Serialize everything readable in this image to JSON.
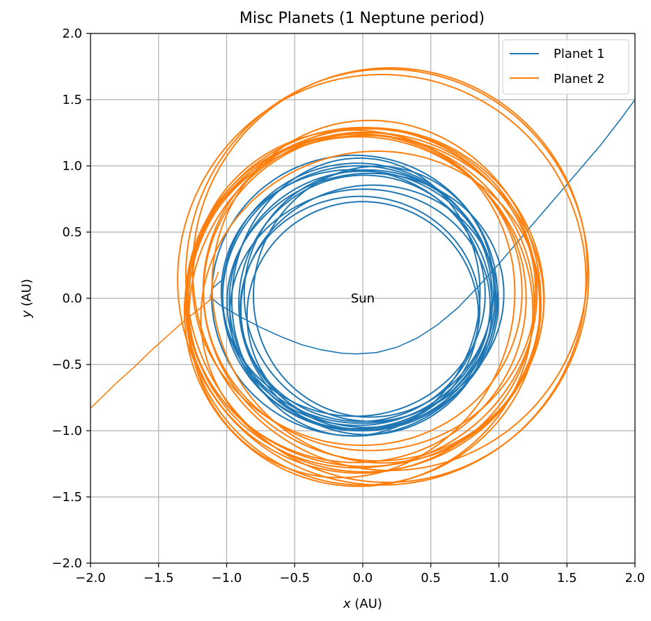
{
  "chart_data": {
    "type": "line",
    "title": "Misc Planets (1 Neptune period)",
    "xlabel_var": "x",
    "xlabel_unit": " (AU)",
    "ylabel_var": "y",
    "ylabel_unit": " (AU)",
    "xlim": [
      -2.0,
      2.0
    ],
    "ylim": [
      -2.0,
      2.0
    ],
    "xticks": [
      -2.0,
      -1.5,
      -1.0,
      -0.5,
      0.0,
      0.5,
      1.0,
      1.5,
      2.0
    ],
    "yticks": [
      -2.0,
      -1.5,
      -1.0,
      -0.5,
      0.0,
      0.5,
      1.0,
      1.5,
      2.0
    ],
    "xtick_labels": [
      "−2.0",
      "−1.5",
      "−1.0",
      "−0.5",
      "0.0",
      "0.5",
      "1.0",
      "1.5",
      "2.0"
    ],
    "ytick_labels": [
      "−2.0",
      "−1.5",
      "−1.0",
      "−0.5",
      "0.0",
      "0.5",
      "1.0",
      "1.5",
      "2.0"
    ],
    "grid": true,
    "legend_position": "top-right",
    "annotation": {
      "text": "Sun",
      "x": 0.0,
      "y": 0.0
    },
    "series": [
      {
        "name": "Planet 1",
        "color": "#1f77b4",
        "orbit_loops": [
          {
            "cx": -0.06,
            "cy": 0.02,
            "rx": 1.05,
            "ry": 1.06,
            "rot_deg": 0
          },
          {
            "cx": -0.03,
            "cy": 0.0,
            "rx": 1.0,
            "ry": 1.0,
            "rot_deg": 0
          },
          {
            "cx": 0.0,
            "cy": -0.02,
            "rx": 0.98,
            "ry": 0.98,
            "rot_deg": 0
          },
          {
            "cx": 0.05,
            "cy": 0.02,
            "rx": 0.92,
            "ry": 0.95,
            "rot_deg": 10
          },
          {
            "cx": -0.02,
            "cy": -0.08,
            "rx": 0.96,
            "ry": 0.9,
            "rot_deg": 15
          },
          {
            "cx": 0.08,
            "cy": 0.05,
            "rx": 0.88,
            "ry": 0.95,
            "rot_deg": -12
          },
          {
            "cx": -0.07,
            "cy": 0.04,
            "rx": 0.97,
            "ry": 0.93,
            "rot_deg": -8
          },
          {
            "cx": 0.02,
            "cy": -0.05,
            "rx": 0.93,
            "ry": 0.98,
            "rot_deg": 5
          },
          {
            "cx": 0.05,
            "cy": -0.06,
            "rx": 0.95,
            "ry": 0.91,
            "rot_deg": 20
          },
          {
            "cx": -0.04,
            "cy": 0.03,
            "rx": 0.99,
            "ry": 0.99,
            "rot_deg": 0
          },
          {
            "cx": 0.0,
            "cy": -0.13,
            "rx": 0.85,
            "ry": 0.86,
            "rot_deg": 0
          },
          {
            "cx": -0.02,
            "cy": -0.08,
            "rx": 0.88,
            "ry": 0.85,
            "rot_deg": 0
          },
          {
            "cx": -0.05,
            "cy": 0.01,
            "rx": 0.91,
            "ry": 1.05,
            "rot_deg": -6
          },
          {
            "cx": 0.02,
            "cy": 0.0,
            "rx": 1.02,
            "ry": 0.94,
            "rot_deg": 12
          }
        ],
        "escape_path": [
          [
            -1.12,
            0.01
          ],
          [
            -1.05,
            -0.05
          ],
          [
            -0.9,
            -0.14
          ],
          [
            -0.75,
            -0.22
          ],
          [
            -0.6,
            -0.29
          ],
          [
            -0.45,
            -0.35
          ],
          [
            -0.3,
            -0.39
          ],
          [
            -0.15,
            -0.415
          ],
          [
            -0.05,
            -0.42
          ],
          [
            0.1,
            -0.41
          ],
          [
            0.25,
            -0.37
          ],
          [
            0.4,
            -0.3
          ],
          [
            0.55,
            -0.2
          ],
          [
            0.7,
            -0.07
          ],
          [
            0.85,
            0.09
          ],
          [
            1.0,
            0.26
          ],
          [
            1.15,
            0.44
          ],
          [
            1.3,
            0.62
          ],
          [
            1.45,
            0.8
          ],
          [
            1.6,
            0.98
          ],
          [
            1.75,
            1.16
          ],
          [
            1.9,
            1.36
          ],
          [
            2.0,
            1.5
          ]
        ],
        "entry_path": [
          [
            -1.02,
            0.15
          ],
          [
            -1.1,
            0.08
          ],
          [
            -1.12,
            0.01
          ]
        ]
      },
      {
        "name": "Planet 2",
        "color": "#ff7f0e",
        "orbit_loops": [
          {
            "cx": 0.18,
            "cy": 0.17,
            "rx": 1.48,
            "ry": 1.56,
            "rot_deg": 0
          },
          {
            "cx": 0.2,
            "cy": 0.22,
            "rx": 1.45,
            "ry": 1.52,
            "rot_deg": 0
          },
          {
            "cx": 0.14,
            "cy": 0.14,
            "rx": 1.5,
            "ry": 1.55,
            "rot_deg": 0
          },
          {
            "cx": 0.0,
            "cy": -0.06,
            "rx": 1.3,
            "ry": 1.35,
            "rot_deg": 0
          },
          {
            "cx": -0.03,
            "cy": -0.1,
            "rx": 1.28,
            "ry": 1.32,
            "rot_deg": 0
          },
          {
            "cx": -0.02,
            "cy": -0.04,
            "rx": 1.28,
            "ry": 1.28,
            "rot_deg": 0
          },
          {
            "cx": 0.02,
            "cy": -0.02,
            "rx": 1.31,
            "ry": 1.25,
            "rot_deg": 0
          },
          {
            "cx": -0.05,
            "cy": 0.0,
            "rx": 1.25,
            "ry": 1.24,
            "rot_deg": 0
          },
          {
            "cx": 0.05,
            "cy": 0.05,
            "rx": 1.22,
            "ry": 1.2,
            "rot_deg": 0
          },
          {
            "cx": 0.1,
            "cy": 0.05,
            "rx": 1.2,
            "ry": 1.3,
            "rot_deg": 15
          },
          {
            "cx": -0.08,
            "cy": -0.05,
            "rx": 1.18,
            "ry": 1.32,
            "rot_deg": -20
          },
          {
            "cx": 0.06,
            "cy": -0.1,
            "rx": 1.26,
            "ry": 1.2,
            "rot_deg": 25
          },
          {
            "cx": -0.04,
            "cy": 0.08,
            "rx": 1.22,
            "ry": 1.18,
            "rot_deg": -30
          },
          {
            "cx": 0.08,
            "cy": 0.03,
            "rx": 1.24,
            "ry": 1.27,
            "rot_deg": 40
          },
          {
            "cx": 0.0,
            "cy": 0.0,
            "rx": 1.26,
            "ry": 1.3,
            "rot_deg": -45
          }
        ],
        "escape_path": [
          [
            -1.12,
            -0.01
          ],
          [
            -1.2,
            -0.08
          ],
          [
            -1.3,
            -0.16
          ],
          [
            -1.42,
            -0.27
          ],
          [
            -1.55,
            -0.39
          ],
          [
            -1.68,
            -0.52
          ],
          [
            -1.8,
            -0.63
          ],
          [
            -1.9,
            -0.73
          ],
          [
            -2.0,
            -0.83
          ]
        ],
        "entry_path": [
          [
            -1.06,
            0.2
          ],
          [
            -1.1,
            0.09
          ],
          [
            -1.12,
            -0.01
          ]
        ]
      }
    ]
  }
}
